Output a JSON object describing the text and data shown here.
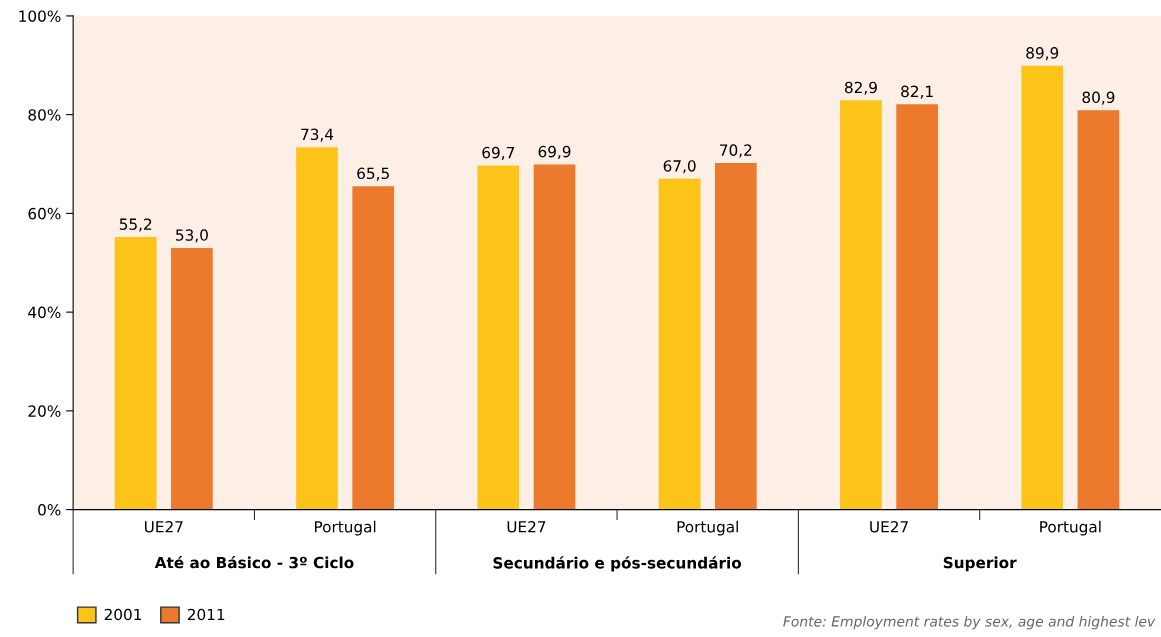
{
  "chart_data": {
    "type": "bar",
    "categories": [
      "UE27",
      "Portugal",
      "UE27",
      "Portugal",
      "UE27",
      "Portugal"
    ],
    "series": [
      {
        "name": "2001",
        "color": "#fcc419",
        "values": [
          55.2,
          73.4,
          69.7,
          67.0,
          82.9,
          89.9
        ],
        "value_labels": [
          "55,2",
          "73,4",
          "69,7",
          "67,0",
          "82,9",
          "89,9"
        ]
      },
      {
        "name": "2011",
        "color": "#ec7a2c",
        "values": [
          53.0,
          65.5,
          69.9,
          70.2,
          82.1,
          80.9
        ],
        "value_labels": [
          "53,0",
          "65,5",
          "69,9",
          "70,2",
          "82,1",
          "80,9"
        ]
      }
    ],
    "ylim": [
      0,
      100
    ],
    "yticks": [
      {
        "value": 0,
        "label": "0%"
      },
      {
        "value": 20,
        "label": "20%"
      },
      {
        "value": 40,
        "label": "40%"
      },
      {
        "value": 60,
        "label": "60%"
      },
      {
        "value": 80,
        "label": "80%"
      },
      {
        "value": 100,
        "label": "100%"
      }
    ],
    "annotations": [
      "Até ao Básico - 3º Ciclo",
      "Secundário e pós-secundário",
      "Superior",
      "Fonte: Employment rates by sex, age and highest lev"
    ],
    "grid": false,
    "legend": "bottom left"
  }
}
